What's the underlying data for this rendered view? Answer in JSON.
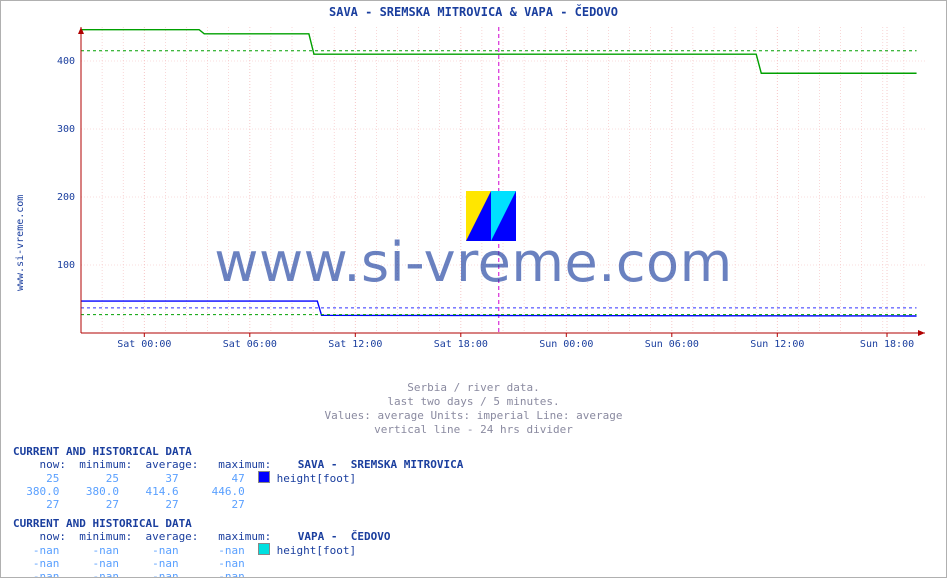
{
  "meta": {
    "site_label": "www.si-vreme.com",
    "watermark_text": "www.si-vreme.com"
  },
  "chart": {
    "type": "line",
    "title": "SAVA -  SREMSKA MITROVICA &  VAPA -  ČEDOVO",
    "background_color": "#ffffff",
    "grid_color": "#f4bdbd",
    "axis_color": "#b00000",
    "divider_color": "#d000d0",
    "y": {
      "min": 0,
      "max": 450,
      "ticks": [
        100,
        200,
        300,
        400
      ],
      "tick_color": "#1a3e9e",
      "tick_fontsize": 10
    },
    "x": {
      "labels": [
        "Sat 00:00",
        "Sat 06:00",
        "Sat 12:00",
        "Sat 18:00",
        "Sun 00:00",
        "Sun 06:00",
        "Sun 12:00",
        "Sun 18:00"
      ],
      "positions_rel": [
        0.075,
        0.2,
        0.325,
        0.45,
        0.575,
        0.7,
        0.825,
        0.955
      ],
      "divider_rel": 0.495,
      "minor_per_major": 5,
      "tick_color": "#1a3e9e",
      "tick_fontsize": 10
    },
    "series": [
      {
        "name": "SAVA height [foot] (line)",
        "stroke": "#0000ff",
        "stroke_width": 1.4,
        "points_rel": [
          [
            0.0,
            47
          ],
          [
            0.28,
            47
          ],
          [
            0.285,
            26
          ],
          [
            0.99,
            25
          ]
        ]
      },
      {
        "name": "SAVA metric average (dash blue)",
        "stroke": "#3030ff",
        "stroke_width": 1,
        "dash": "3,3",
        "points_rel": [
          [
            0.0,
            37
          ],
          [
            0.99,
            37
          ]
        ]
      },
      {
        "name": "SAVA (green high)",
        "stroke": "#00a000",
        "stroke_width": 1.4,
        "points_rel": [
          [
            0.0,
            446
          ],
          [
            0.14,
            446
          ],
          [
            0.146,
            440
          ],
          [
            0.27,
            440
          ],
          [
            0.276,
            410
          ],
          [
            0.8,
            410
          ],
          [
            0.806,
            382
          ],
          [
            0.99,
            382
          ]
        ]
      },
      {
        "name": "SAVA average (green dash)",
        "stroke": "#00a000",
        "stroke_width": 1,
        "dash": "3,3",
        "points_rel": [
          [
            0.0,
            415
          ],
          [
            0.99,
            415
          ]
        ]
      },
      {
        "name": "other avg dash",
        "stroke": "#00a000",
        "stroke_width": 1,
        "dash": "3,3",
        "points_rel": [
          [
            0.0,
            27
          ],
          [
            0.99,
            27
          ]
        ]
      }
    ],
    "caption": {
      "l1": "Serbia / river data.",
      "l2": "last two days / 5 minutes.",
      "l3": "Values: average  Units: imperial  Line: average",
      "l4": "vertical line - 24 hrs  divider"
    }
  },
  "tables": [
    {
      "header": "CURRENT AND HISTORICAL DATA",
      "label_row": "    now:  minimum:  average:   maximum:",
      "station": "SAVA -  SREMSKA MITROVICA",
      "swatch_color": "#0000ff",
      "metric_label": "height[foot]",
      "rows": [
        "     25       25       37        47",
        "  380.0    380.0    414.6     446.0",
        "     27       27       27        27"
      ]
    },
    {
      "header": "CURRENT AND HISTORICAL DATA",
      "label_row": "    now:  minimum:  average:   maximum:",
      "station": "VAPA -  ČEDOVO",
      "swatch_color": "#00e0e0",
      "metric_label": "height[foot]",
      "rows": [
        "   -nan     -nan     -nan      -nan",
        "   -nan     -nan     -nan      -nan",
        "   -nan     -nan     -nan      -nan"
      ]
    }
  ]
}
